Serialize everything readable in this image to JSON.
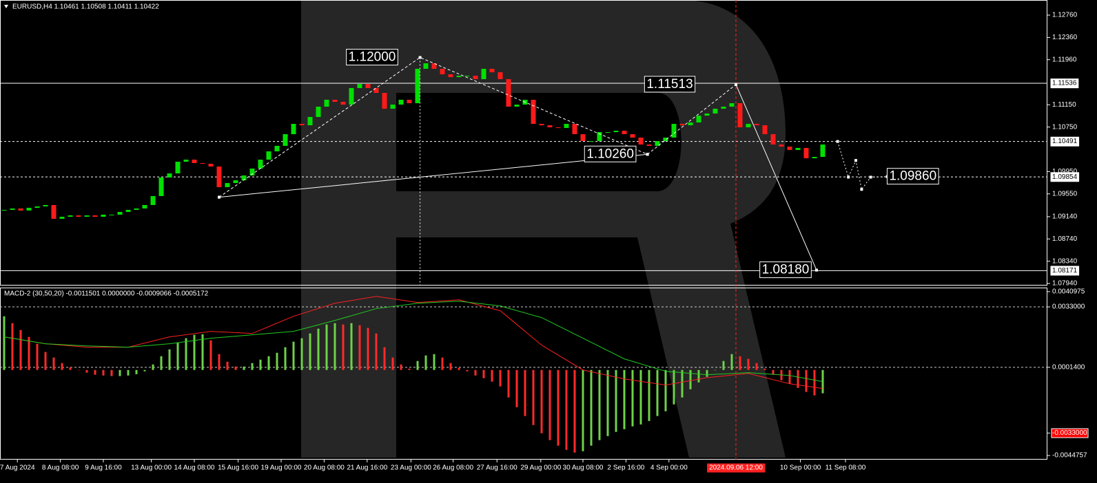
{
  "chart_data": [
    {
      "type": "candlestick",
      "title": "EURUSD,H4  1.10461 1.10508 1.10411 1.10422",
      "up_color": "#00e000",
      "down_color": "#ff1a1a",
      "closes": [
        1.09262,
        1.09287,
        1.0925,
        1.09299,
        1.09324,
        1.09349,
        1.09101,
        1.09138,
        1.09163,
        1.09138,
        1.09163,
        1.09138,
        1.09176,
        1.09176,
        1.09225,
        1.09262,
        1.09287,
        1.09349,
        1.0951,
        1.09843,
        1.09917,
        1.10127,
        1.10164,
        1.10103,
        1.1009,
        1.10041,
        1.0967,
        1.09744,
        1.09794,
        1.0988,
        1.10004,
        1.10164,
        1.10313,
        1.10412,
        1.10622,
        1.10807,
        1.10782,
        1.10931,
        1.11116,
        1.1124,
        1.11203,
        1.11153,
        1.1145,
        1.11524,
        1.1145,
        1.11363,
        1.11079,
        1.11153,
        1.1124,
        1.11178,
        1.11796,
        1.11895,
        1.11796,
        1.11697,
        1.11647,
        1.11672,
        1.11672,
        1.1161,
        1.11796,
        1.11734,
        1.1161,
        1.11116,
        1.11153,
        1.1124,
        1.10807,
        1.10782,
        1.10745,
        1.10733,
        1.10807,
        1.10622,
        1.10498,
        1.10498,
        1.10659,
        1.10659,
        1.10684,
        1.10622,
        1.1056,
        1.10436,
        1.10412,
        1.10498,
        1.1056,
        1.10807,
        1.10782,
        1.10832,
        1.10955,
        1.10993,
        1.11079,
        1.11116,
        1.11178,
        1.10745,
        1.10807,
        1.10782,
        1.10622,
        1.10436,
        1.10399,
        1.10338,
        1.10375,
        1.10189,
        1.10214,
        1.10436
      ],
      "ylim": [
        1.07903,
        1.13032
      ],
      "yticks": [
        {
          "value": 1.1276,
          "label": "1.12760"
        },
        {
          "value": 1.1236,
          "label": "1.12360"
        },
        {
          "value": 1.1196,
          "label": "1.11960"
        },
        {
          "value": 1.1115,
          "label": "1.11150"
        },
        {
          "value": 1.1075,
          "label": "1.10750"
        },
        {
          "value": 1.0995,
          "label": "1.09950"
        },
        {
          "value": 1.0955,
          "label": "1.09550"
        },
        {
          "value": 1.0914,
          "label": "1.09140"
        },
        {
          "value": 1.0874,
          "label": "1.08740"
        },
        {
          "value": 1.0834,
          "label": "1.08340"
        },
        {
          "value": 1.0794,
          "label": "1.07940"
        }
      ],
      "xticks": [
        {
          "value": 1.6,
          "label": "7 Aug 2024"
        },
        {
          "value": 6.8,
          "label": "8 Aug 08:00"
        },
        {
          "value": 12,
          "label": "9 Aug 16:00"
        },
        {
          "value": 17.8,
          "label": "13 Aug 00:00"
        },
        {
          "value": 23,
          "label": "14 Aug 08:00"
        },
        {
          "value": 28.3,
          "label": "15 Aug 16:00"
        },
        {
          "value": 33.5,
          "label": "19 Aug 00:00"
        },
        {
          "value": 38.7,
          "label": "20 Aug 08:00"
        },
        {
          "value": 43.9,
          "label": "21 Aug 16:00"
        },
        {
          "value": 49.2,
          "label": "23 Aug 00:00"
        },
        {
          "value": 54.3,
          "label": "26 Aug 08:00"
        },
        {
          "value": 59.6,
          "label": "27 Aug 16:00"
        },
        {
          "value": 64.9,
          "label": "29 Aug 00:00"
        },
        {
          "value": 70,
          "label": "30 Aug 08:00"
        },
        {
          "value": 75.2,
          "label": "2 Sep 16:00"
        },
        {
          "value": 80.4,
          "label": "4 Sep 00:00"
        },
        {
          "value": 96.3,
          "label": "10 Sep 00:00"
        },
        {
          "value": 101.75,
          "label": "11 Sep 08:00"
        }
      ],
      "levels": [
        {
          "value": 1.11536,
          "label": "1.11536",
          "style": "solid"
        },
        {
          "value": 1.10491,
          "label": "1.10491",
          "style": "dotted"
        },
        {
          "value": 1.09854,
          "label": "1.09854",
          "style": "dotted"
        },
        {
          "value": 1.08171,
          "label": "1.08171",
          "style": "solid"
        }
      ],
      "wave": [
        {
          "index": 26,
          "price": 1.0949
        },
        {
          "index": 50.3,
          "price": 1.12
        },
        {
          "index": 77.8,
          "price": 1.1026
        },
        {
          "index": 88.5,
          "price": 1.11513
        }
      ],
      "target": {
        "index": 98.25,
        "price": 1.0818
      },
      "forecast": [
        {
          "index": 100.8,
          "price": 1.10491
        },
        {
          "index": 102.1,
          "price": 1.0985
        },
        {
          "index": 103,
          "price": 1.1015
        },
        {
          "index": 103.7,
          "price": 1.0963
        },
        {
          "index": 104.8,
          "price": 1.0985
        },
        {
          "index": 106.8,
          "price": 1.0986
        }
      ],
      "annotations": [
        {
          "label": "1.12000",
          "value": 1.12,
          "index": 44.5
        },
        {
          "label": "1.11513",
          "value": 1.11513,
          "index": 80.5
        },
        {
          "label": "1.10260",
          "value": 1.1026,
          "index": 73.3
        },
        {
          "label": "1.09860",
          "value": 1.0986,
          "index": 109.9
        },
        {
          "label": "1.08180",
          "value": 1.0818,
          "index": 94.5
        }
      ],
      "crosshair": {
        "index": 88.5,
        "label": "2024.09.06 12:00"
      }
    },
    {
      "type": "macd",
      "title": "MACD-2 (30,50,20) -0.0011501 0.0000000 -0.0009066 -0.0005172",
      "up_color": "#6ed24a",
      "down_color": "#ff2a2a",
      "histogram": [
        0.00281,
        0.00245,
        0.00209,
        0.00173,
        0.00137,
        0.00094,
        0.00065,
        0.00036,
        0.00014,
        0,
        -0.00014,
        -0.00025,
        -0.00029,
        -0.00032,
        -0.00032,
        -0.00029,
        -0.00022,
        -7e-05,
        0.00029,
        0.00072,
        0.00108,
        0.00144,
        0.00166,
        0.00184,
        0.00187,
        0.00155,
        0.00083,
        0.00043,
        0.00018,
        0.00018,
        0.00036,
        0.00054,
        0.00072,
        0.0009,
        0.00119,
        0.00148,
        0.00166,
        0.00191,
        0.00216,
        0.00238,
        0.00245,
        0.00238,
        0.00245,
        0.00234,
        0.0022,
        0.00191,
        0.00119,
        0.00065,
        0.00029,
        7e-05,
        0.00047,
        0.00076,
        0.00083,
        0.00065,
        0.00036,
        0.00011,
        -7e-05,
        -0.00029,
        -0.00043,
        -0.00061,
        -0.00086,
        -0.00144,
        -0.00195,
        -0.00241,
        -0.00288,
        -0.00331,
        -0.00367,
        -0.00396,
        -0.00418,
        -0.00432,
        -0.00425,
        -0.00396,
        -0.00367,
        -0.00346,
        -0.00324,
        -0.0031,
        -0.00295,
        -0.00285,
        -0.00267,
        -0.00241,
        -0.00216,
        -0.0018,
        -0.00144,
        -0.00101,
        -0.00065,
        -0.00036,
        0,
        0.00047,
        0.00083,
        0.00072,
        0.00058,
        0.00036,
        7e-05,
        -0.00025,
        -0.00054,
        -0.00072,
        -0.00094,
        -0.00115,
        -0.00133,
        -0.00122
      ],
      "series": [
        {
          "color": "#ff2020",
          "x": [
            0,
            5,
            10,
            15,
            20,
            25,
            30,
            35,
            40,
            45,
            50,
            55,
            60,
            65,
            70,
            75,
            80,
            85,
            90,
            95,
            99
          ],
          "values": [
            0.00173,
            0.00137,
            0.00119,
            0.00119,
            0.00173,
            0.00202,
            0.00191,
            0.00281,
            0.00349,
            0.00385,
            0.00353,
            0.00367,
            0.0031,
            0.0013,
            0,
            -0.00047,
            -0.00079,
            -0.0004,
            -0.00018,
            -0.00072,
            -0.00097
          ]
        },
        {
          "color": "#22cc22",
          "x": [
            0,
            5,
            10,
            15,
            20,
            25,
            30,
            35,
            40,
            45,
            50,
            55,
            60,
            65,
            70,
            75,
            80,
            85,
            90,
            95,
            99
          ],
          "values": [
            0.00173,
            0.00137,
            0.00126,
            0.00119,
            0.00137,
            0.00166,
            0.00184,
            0.00202,
            0.00259,
            0.00321,
            0.00349,
            0.0036,
            0.00335,
            0.00274,
            0.00166,
            0.00058,
            -7e-05,
            -0.00025,
            -0.00014,
            -0.00029,
            -0.00061
          ]
        }
      ],
      "ylim": [
        -0.00469,
        0.00431
      ],
      "yticks": [
        {
          "value": 0.0040975,
          "label": "0.0040975"
        },
        {
          "value": 0.0033,
          "label": "0.0033000"
        },
        {
          "value": 0.00014,
          "label": "0.0001400"
        },
        {
          "value": -0.0033,
          "label": "-0.0033000",
          "color": "#ff0000"
        },
        {
          "value": -0.0044757,
          "label": "-0.0044757"
        }
      ],
      "levels": [
        0.0033,
        0.00014
      ]
    }
  ]
}
